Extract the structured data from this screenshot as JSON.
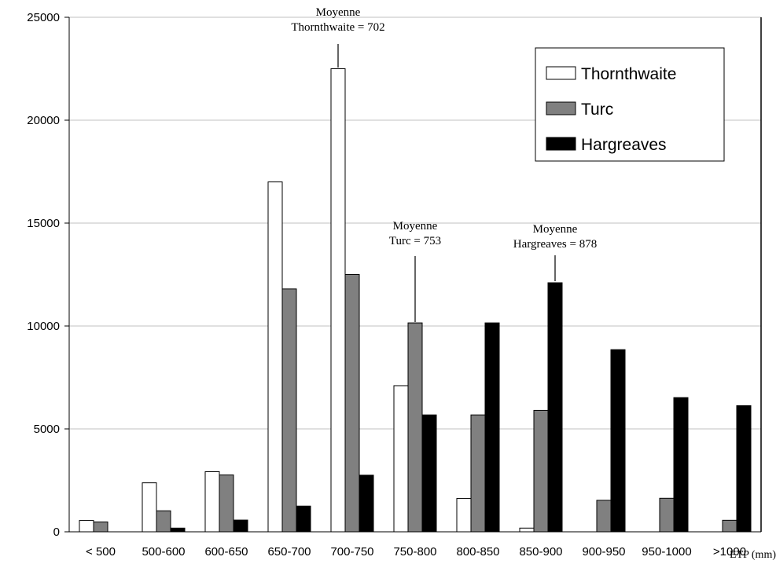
{
  "chart_data": {
    "type": "bar",
    "categories": [
      "< 500",
      "500-600",
      "600-650",
      "650-700",
      "700-750",
      "750-800",
      "800-850",
      "850-900",
      "900-950",
      "950-1000",
      ">1000"
    ],
    "series": [
      {
        "name": "Thornthwaite",
        "values": [
          550,
          2380,
          2920,
          17000,
          22500,
          7100,
          1620,
          180,
          0,
          0,
          0
        ],
        "color": "#ffffff"
      },
      {
        "name": "Turc",
        "values": [
          480,
          1020,
          2760,
          11800,
          12500,
          10150,
          5680,
          5900,
          1530,
          1630,
          560
        ],
        "color": "#808080"
      },
      {
        "name": "Hargreaves",
        "values": [
          0,
          180,
          570,
          1250,
          2750,
          5680,
          10150,
          12100,
          8850,
          6520,
          6130
        ],
        "color": "#000000"
      }
    ],
    "xlabel": "ETP (mm)",
    "ylabel": "",
    "ylim": [
      0,
      25000
    ],
    "yticks": [
      0,
      5000,
      10000,
      15000,
      20000,
      25000
    ],
    "grid": true,
    "legend": "top-right",
    "annotations": [
      {
        "lines": [
          "Moyenne",
          "Thornthwaite = 702"
        ],
        "x": 702
      },
      {
        "lines": [
          "Moyenne",
          "Turc = 753"
        ],
        "x": 753
      },
      {
        "lines": [
          "Moyenne",
          "Hargreaves = 878"
        ],
        "x": 878
      }
    ]
  }
}
